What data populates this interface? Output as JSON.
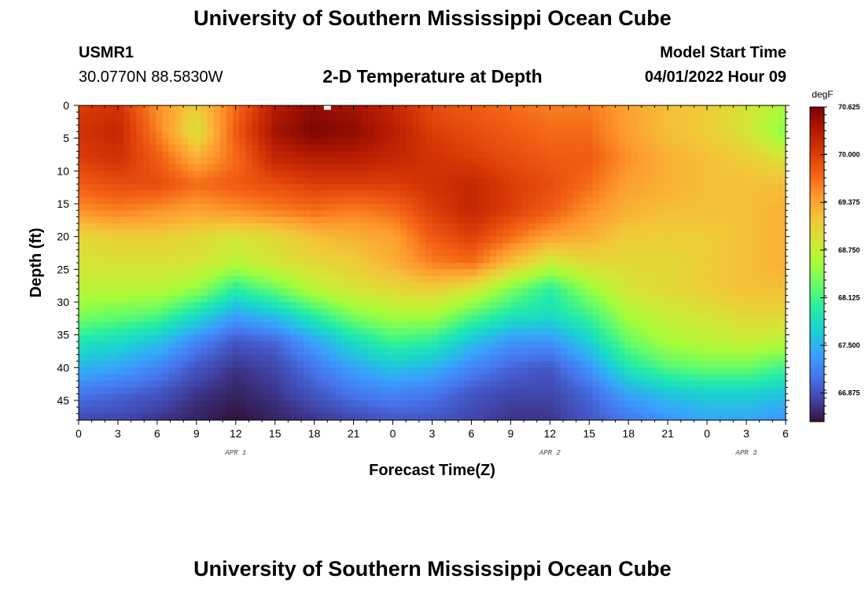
{
  "header": {
    "title": "University of Southern Mississippi Ocean Cube",
    "footer_title": "University of Southern Mississippi Ocean Cube",
    "station_id": "USMR1",
    "coordinates": "30.0770N  88.5830W",
    "plot_title": "2-D Temperature at Depth",
    "model_start_label": "Model Start Time",
    "model_start_value": "04/01/2022 Hour 09"
  },
  "chart_data": {
    "type": "heatmap",
    "title": "2-D Temperature at Depth",
    "xlabel": "Forecast Time(Z)",
    "ylabel": "Depth (ft)",
    "x_hours_range": [
      0,
      54
    ],
    "y_range": [
      0,
      48
    ],
    "x_ticks": [
      "0",
      "3",
      "6",
      "9",
      "12",
      "15",
      "18",
      "21",
      "0",
      "3",
      "6",
      "9",
      "12",
      "15",
      "18",
      "21",
      "0",
      "3",
      "6"
    ],
    "y_ticks": [
      0,
      5,
      10,
      15,
      20,
      25,
      30,
      35,
      40,
      45
    ],
    "date_labels": [
      {
        "text": "APR 1",
        "hour": 12
      },
      {
        "text": "APR 2",
        "hour": 36
      },
      {
        "text": "APR 3",
        "hour": 51
      }
    ],
    "colorbar": {
      "unit": "degF",
      "min": 66.5,
      "max": 70.625,
      "tick_values": [
        70.625,
        70.0,
        69.375,
        68.75,
        68.125,
        67.5,
        66.875
      ],
      "tick_labels": [
        "70.625",
        "70.000",
        "69.375",
        "68.750",
        "68.125",
        "67.500",
        "66.875"
      ],
      "colors": [
        "#30123b",
        "#4145ab",
        "#4675ed",
        "#39a2fc",
        "#1bcfd4",
        "#24eca6",
        "#61fc6c",
        "#a4fc3b",
        "#d1e834",
        "#f3c63a",
        "#fe9b2d",
        "#f36315",
        "#d93806",
        "#b11901",
        "#7a0403"
      ]
    },
    "temperature_grid": {
      "x_hours": [
        0,
        3,
        6,
        9,
        12,
        15,
        18,
        21,
        24,
        27,
        30,
        33,
        36,
        39,
        42,
        45,
        48,
        51,
        54
      ],
      "depths_ft": [
        0,
        4,
        8,
        12,
        16,
        20,
        24,
        28,
        32,
        36,
        40,
        44,
        48
      ],
      "values_degF": [
        [
          70.0,
          70.1,
          69.5,
          69.1,
          69.7,
          70.3,
          70.5,
          70.4,
          70.2,
          69.9,
          69.8,
          69.7,
          69.6,
          69.6,
          69.4,
          69.2,
          69.1,
          68.9,
          68.6
        ],
        [
          70.1,
          70.2,
          69.6,
          68.9,
          69.8,
          70.4,
          70.6,
          70.5,
          70.3,
          70.0,
          69.9,
          69.8,
          69.7,
          69.7,
          69.4,
          69.2,
          69.1,
          68.9,
          68.4
        ],
        [
          70.0,
          70.1,
          69.8,
          69.3,
          69.7,
          70.2,
          70.3,
          70.3,
          70.2,
          70.1,
          70.0,
          69.9,
          69.8,
          69.8,
          69.5,
          69.3,
          69.2,
          69.1,
          68.9
        ],
        [
          69.8,
          69.9,
          69.9,
          69.7,
          69.8,
          69.9,
          70.0,
          70.0,
          70.0,
          70.1,
          70.2,
          70.0,
          69.9,
          69.7,
          69.4,
          69.3,
          69.2,
          69.2,
          69.2
        ],
        [
          69.5,
          69.6,
          69.5,
          69.4,
          69.5,
          69.6,
          69.7,
          69.6,
          69.7,
          70.0,
          70.2,
          70.0,
          69.8,
          69.5,
          69.3,
          69.2,
          69.2,
          69.2,
          69.3
        ],
        [
          69.0,
          69.1,
          69.1,
          69.0,
          68.9,
          69.0,
          69.2,
          69.3,
          69.4,
          69.8,
          70.0,
          69.7,
          69.4,
          69.3,
          69.1,
          69.1,
          69.1,
          69.2,
          69.3
        ],
        [
          68.9,
          68.9,
          68.9,
          68.9,
          68.7,
          68.9,
          69.0,
          69.1,
          69.3,
          69.6,
          69.7,
          69.2,
          68.8,
          69.0,
          69.0,
          69.0,
          69.1,
          69.2,
          69.3
        ],
        [
          68.7,
          68.7,
          68.7,
          68.5,
          68.0,
          68.3,
          68.7,
          68.9,
          69.0,
          69.1,
          68.9,
          68.4,
          68.0,
          68.5,
          68.9,
          69.0,
          69.1,
          69.2,
          69.2
        ],
        [
          68.4,
          68.3,
          68.2,
          67.8,
          67.4,
          67.6,
          68.0,
          68.4,
          68.6,
          68.6,
          68.2,
          67.9,
          67.8,
          68.1,
          68.6,
          68.8,
          68.9,
          69.0,
          69.0
        ],
        [
          67.9,
          67.8,
          67.6,
          67.2,
          66.9,
          67.0,
          67.4,
          67.8,
          68.1,
          68.0,
          67.6,
          67.3,
          67.3,
          67.7,
          68.3,
          68.6,
          68.7,
          68.8,
          68.7
        ],
        [
          67.5,
          67.4,
          67.2,
          66.9,
          66.7,
          66.8,
          67.1,
          67.4,
          67.6,
          67.5,
          67.2,
          67.0,
          66.9,
          67.3,
          67.9,
          68.2,
          68.3,
          68.3,
          68.1
        ],
        [
          67.1,
          67.0,
          66.9,
          66.7,
          66.6,
          66.7,
          66.9,
          67.1,
          67.2,
          67.1,
          66.9,
          66.8,
          66.8,
          67.0,
          67.4,
          67.6,
          67.7,
          67.7,
          67.6
        ],
        [
          66.8,
          66.8,
          66.7,
          66.6,
          66.5,
          66.6,
          66.7,
          66.8,
          66.9,
          66.9,
          66.8,
          66.7,
          66.7,
          66.9,
          67.1,
          67.3,
          67.4,
          67.4,
          67.3
        ]
      ]
    }
  }
}
